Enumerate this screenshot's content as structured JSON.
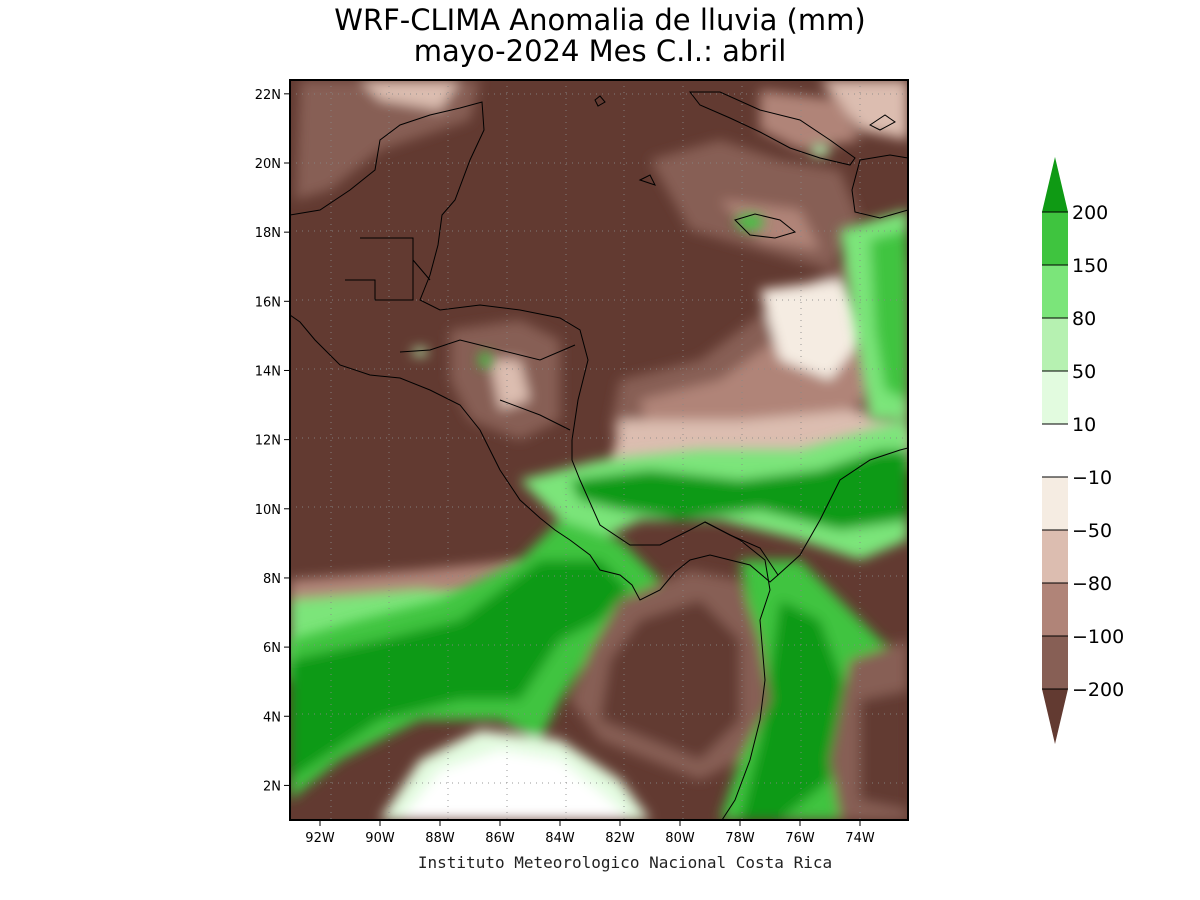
{
  "title": {
    "line1": "WRF-CLIMA Anomalia de lluvia (mm)",
    "line2": "mayo-2024 Mes C.I.: abril"
  },
  "credit": "Instituto Meteorologico Nacional Costa Rica",
  "map": {
    "lat_range": [
      1,
      22.4
    ],
    "lon_range": [
      -93,
      -72.4
    ],
    "lat_ticks": [
      "22N",
      "20N",
      "18N",
      "16N",
      "14N",
      "12N",
      "10N",
      "8N",
      "6N",
      "4N",
      "2N"
    ],
    "lon_ticks": [
      "92W",
      "90W",
      "88W",
      "86W",
      "84W",
      "82W",
      "80W",
      "78W",
      "76W",
      "74W"
    ],
    "gridlines": true
  },
  "colorbar": {
    "labels": [
      "200",
      "150",
      "80",
      "50",
      "10",
      "-10",
      "-50",
      "-80",
      "-100",
      "-200"
    ],
    "colors": [
      "#0f9a14",
      "#3fc43f",
      "#7be57a",
      "#b6f1b1",
      "#e2fbdf",
      "#ffffff",
      "#f5ece2",
      "#dcbdb0",
      "#b08478",
      "#875f55",
      "#623a31"
    ],
    "over_color": "#0f9a14",
    "under_color": "#623a31"
  },
  "colors": {
    "strong_dry": "#623a31",
    "strong_wet": "#0f9a14",
    "frame": "#000000"
  }
}
